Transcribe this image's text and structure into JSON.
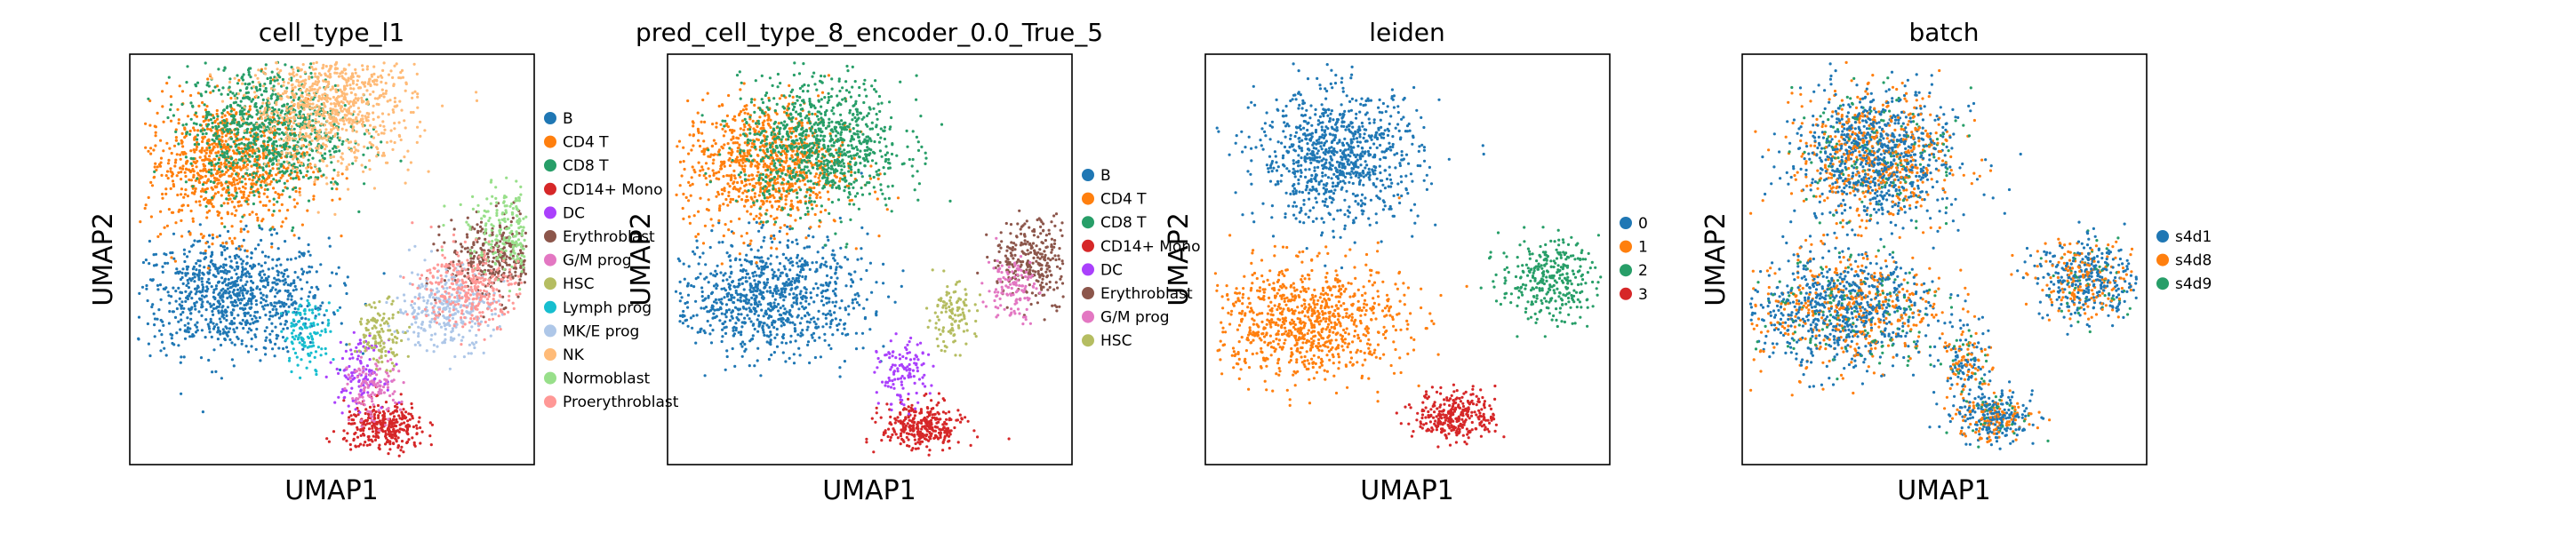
{
  "figure": {
    "panels": [
      {
        "title": "cell_type_l1",
        "xlabel": "UMAP1",
        "ylabel": "UMAP2",
        "legend": [
          {
            "label": "B",
            "color": "#1f77b4"
          },
          {
            "label": "CD4 T",
            "color": "#ff7f0e"
          },
          {
            "label": "CD8 T",
            "color": "#279e68"
          },
          {
            "label": "CD14+ Mono",
            "color": "#d62728"
          },
          {
            "label": "DC",
            "color": "#aa40fc"
          },
          {
            "label": "Erythroblast",
            "color": "#8c564b"
          },
          {
            "label": "G/M prog",
            "color": "#e377c2"
          },
          {
            "label": "HSC",
            "color": "#b5bd61"
          },
          {
            "label": "Lymph prog",
            "color": "#17becf"
          },
          {
            "label": "MK/E prog",
            "color": "#aec7e8"
          },
          {
            "label": "NK",
            "color": "#ffbb78"
          },
          {
            "label": "Normoblast",
            "color": "#98df8a"
          },
          {
            "label": "Proerythroblast",
            "color": "#ff9896"
          }
        ]
      },
      {
        "title": "pred_cell_type_8_encoder_0.0_True_5",
        "xlabel": "UMAP1",
        "ylabel": "UMAP2",
        "legend": [
          {
            "label": "B",
            "color": "#1f77b4"
          },
          {
            "label": "CD4 T",
            "color": "#ff7f0e"
          },
          {
            "label": "CD8 T",
            "color": "#279e68"
          },
          {
            "label": "CD14+ Mono",
            "color": "#d62728"
          },
          {
            "label": "DC",
            "color": "#aa40fc"
          },
          {
            "label": "Erythroblast",
            "color": "#8c564b"
          },
          {
            "label": "G/M prog",
            "color": "#e377c2"
          },
          {
            "label": "HSC",
            "color": "#b5bd61"
          }
        ]
      },
      {
        "title": "leiden",
        "xlabel": "UMAP1",
        "ylabel": "UMAP2",
        "legend": [
          {
            "label": "0",
            "color": "#1f77b4"
          },
          {
            "label": "1",
            "color": "#ff7f0e"
          },
          {
            "label": "2",
            "color": "#279e68"
          },
          {
            "label": "3",
            "color": "#d62728"
          }
        ]
      },
      {
        "title": "batch",
        "xlabel": "UMAP1",
        "ylabel": "UMAP2",
        "legend": [
          {
            "label": "s4d1",
            "color": "#1f77b4"
          },
          {
            "label": "s4d8",
            "color": "#ff7f0e"
          },
          {
            "label": "s4d9",
            "color": "#279e68"
          }
        ]
      }
    ]
  },
  "chart_data": [
    {
      "type": "scatter",
      "title": "cell_type_l1",
      "xlabel": "UMAP1",
      "ylabel": "UMAP2",
      "grid": false,
      "legend_position": "right",
      "clusters": [
        {
          "name": "B",
          "x": 0.25,
          "y": 0.41
        },
        {
          "name": "CD4 T",
          "x": 0.24,
          "y": 0.73
        },
        {
          "name": "CD8 T",
          "x": 0.34,
          "y": 0.82
        },
        {
          "name": "CD14+ Mono",
          "x": 0.63,
          "y": 0.09
        },
        {
          "name": "DC",
          "x": 0.57,
          "y": 0.22
        },
        {
          "name": "Erythroblast",
          "x": 0.9,
          "y": 0.5
        },
        {
          "name": "G/M prog",
          "x": 0.6,
          "y": 0.18
        },
        {
          "name": "HSC",
          "x": 0.62,
          "y": 0.32
        },
        {
          "name": "Lymph prog",
          "x": 0.44,
          "y": 0.32
        },
        {
          "name": "MK/E prog",
          "x": 0.78,
          "y": 0.38
        },
        {
          "name": "NK",
          "x": 0.5,
          "y": 0.88
        },
        {
          "name": "Normoblast",
          "x": 0.96,
          "y": 0.57
        },
        {
          "name": "Proerythroblast",
          "x": 0.84,
          "y": 0.43
        }
      ]
    },
    {
      "type": "scatter",
      "title": "pred_cell_type_8_encoder_0.0_True_5",
      "xlabel": "UMAP1",
      "ylabel": "UMAP2",
      "grid": false,
      "legend_position": "right",
      "clusters": [
        {
          "name": "B",
          "x": 0.25,
          "y": 0.41
        },
        {
          "name": "CD4 T",
          "x": 0.24,
          "y": 0.73
        },
        {
          "name": "CD8 T",
          "x": 0.38,
          "y": 0.78
        },
        {
          "name": "CD14+ Mono",
          "x": 0.63,
          "y": 0.09
        },
        {
          "name": "DC",
          "x": 0.58,
          "y": 0.22
        },
        {
          "name": "Erythroblast",
          "x": 0.92,
          "y": 0.5
        },
        {
          "name": "G/M prog",
          "x": 0.85,
          "y": 0.43
        },
        {
          "name": "HSC",
          "x": 0.7,
          "y": 0.36
        }
      ]
    },
    {
      "type": "scatter",
      "title": "leiden",
      "xlabel": "UMAP1",
      "ylabel": "UMAP2",
      "grid": false,
      "legend_position": "right",
      "clusters": [
        {
          "name": "0",
          "x": 0.33,
          "y": 0.75
        },
        {
          "name": "1",
          "x": 0.25,
          "y": 0.35
        },
        {
          "name": "2",
          "x": 0.85,
          "y": 0.45
        },
        {
          "name": "3",
          "x": 0.62,
          "y": 0.12
        }
      ]
    },
    {
      "type": "scatter",
      "title": "batch",
      "xlabel": "UMAP1",
      "ylabel": "UMAP2",
      "grid": false,
      "legend_position": "right",
      "clusters": [
        {
          "name": "s4d1",
          "x": 0.5,
          "y": 0.5
        },
        {
          "name": "s4d8",
          "x": 0.5,
          "y": 0.5
        },
        {
          "name": "s4d9",
          "x": 0.5,
          "y": 0.5
        }
      ]
    }
  ]
}
